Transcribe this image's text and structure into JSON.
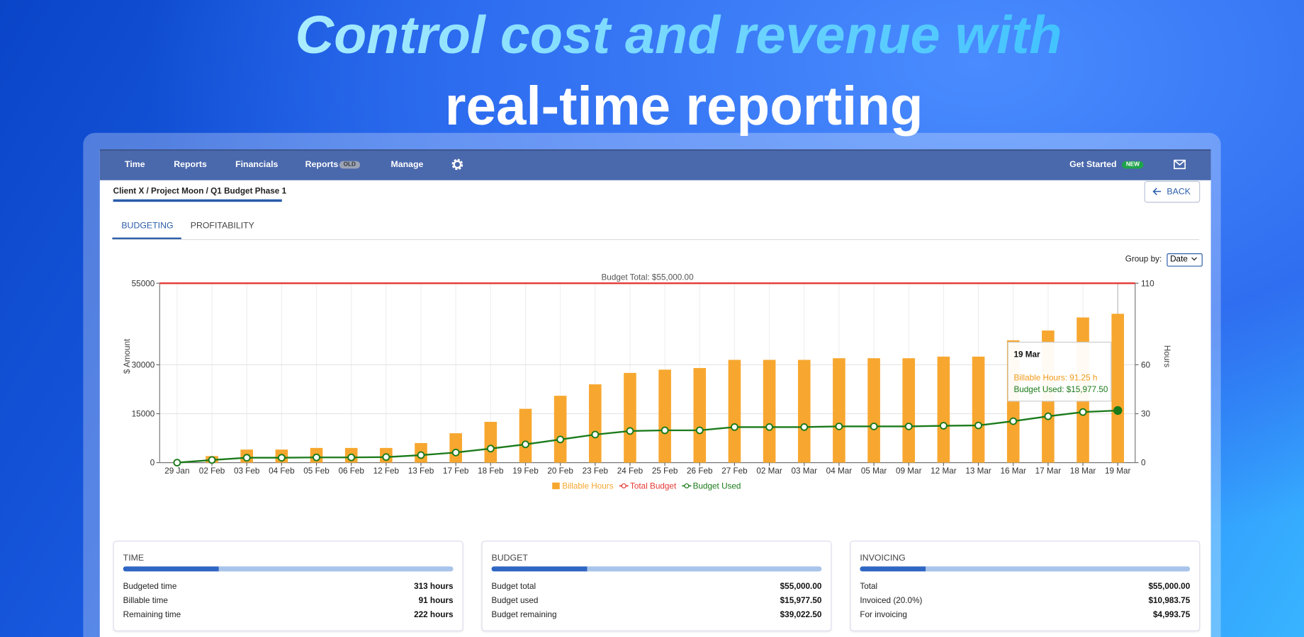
{
  "hero": {
    "line1": "Control cost and revenue with",
    "line2": "real-time reporting"
  },
  "nav": {
    "items": [
      "Time",
      "Reports",
      "Financials",
      "Reports",
      "Manage"
    ],
    "old_badge": "OLD",
    "get_started": "Get Started",
    "new_badge": "NEW"
  },
  "breadcrumb": "Client X / Project Moon / Q1 Budget Phase 1",
  "back": "BACK",
  "tabs": [
    "BUDGETING",
    "PROFITABILITY"
  ],
  "group_by": {
    "label": "Group by:",
    "value": "Date"
  },
  "chart_data": {
    "type": "bar",
    "categories": [
      "29 Jan",
      "02 Feb",
      "03 Feb",
      "04 Feb",
      "05 Feb",
      "06 Feb",
      "12 Feb",
      "13 Feb",
      "17 Feb",
      "18 Feb",
      "19 Feb",
      "20 Feb",
      "23 Feb",
      "24 Feb",
      "25 Feb",
      "26 Feb",
      "27 Feb",
      "02 Mar",
      "03 Mar",
      "04 Mar",
      "05 Mar",
      "09 Mar",
      "12 Mar",
      "13 Mar",
      "16 Mar",
      "17 Mar",
      "18 Mar",
      "19 Mar"
    ],
    "series": [
      {
        "name": "Billable Hours",
        "type": "bar",
        "axis": "y2",
        "color": "#f7a72f",
        "values": [
          0,
          4,
          8,
          8,
          9,
          9,
          9,
          12,
          18,
          25,
          33,
          41,
          48,
          55,
          57,
          58,
          63,
          63,
          63,
          64,
          64,
          64,
          65,
          65,
          75,
          81,
          89,
          91.25
        ]
      },
      {
        "name": "Total Budget",
        "type": "hline",
        "color": "#e53935",
        "value": 55000,
        "label": "Budget Total: $55,000.00"
      },
      {
        "name": "Budget Used",
        "type": "line",
        "color": "#1a7a1a",
        "values": [
          0,
          800,
          1500,
          1500,
          1600,
          1600,
          1700,
          2300,
          3100,
          4300,
          5600,
          7100,
          8600,
          9700,
          9900,
          9900,
          10900,
          10900,
          10900,
          11100,
          11100,
          11100,
          11300,
          11400,
          12700,
          14200,
          15500,
          15977.5
        ]
      }
    ],
    "ylabel": "$ Amount",
    "y2label": "Hours",
    "ylim": [
      0,
      55000
    ],
    "yticks": [
      0,
      15000,
      30000,
      55000
    ],
    "y2lim": [
      0,
      110
    ],
    "y2ticks": [
      0,
      30,
      60,
      110
    ],
    "grid": true,
    "tooltip": {
      "title": "19 Mar",
      "lines": [
        "Billable Hours: 91.25 h",
        "Budget Used: $15,977.50"
      ]
    }
  },
  "cards": [
    {
      "title": "TIME",
      "rows": [
        [
          "Budgeted time",
          "313 hours"
        ],
        [
          "Billable time",
          "91 hours"
        ],
        [
          "Remaining time",
          "222 hours"
        ]
      ]
    },
    {
      "title": "BUDGET",
      "rows": [
        [
          "Budget total",
          "$55,000.00"
        ],
        [
          "Budget used",
          "$15,977.50"
        ],
        [
          "Budget remaining",
          "$39,022.50"
        ]
      ]
    },
    {
      "title": "INVOICING",
      "rows": [
        [
          "Total",
          "$55,000.00"
        ],
        [
          "Invoiced (20.0%)",
          "$10,983.75"
        ],
        [
          "For invoicing",
          "$4,993.75"
        ]
      ]
    }
  ]
}
